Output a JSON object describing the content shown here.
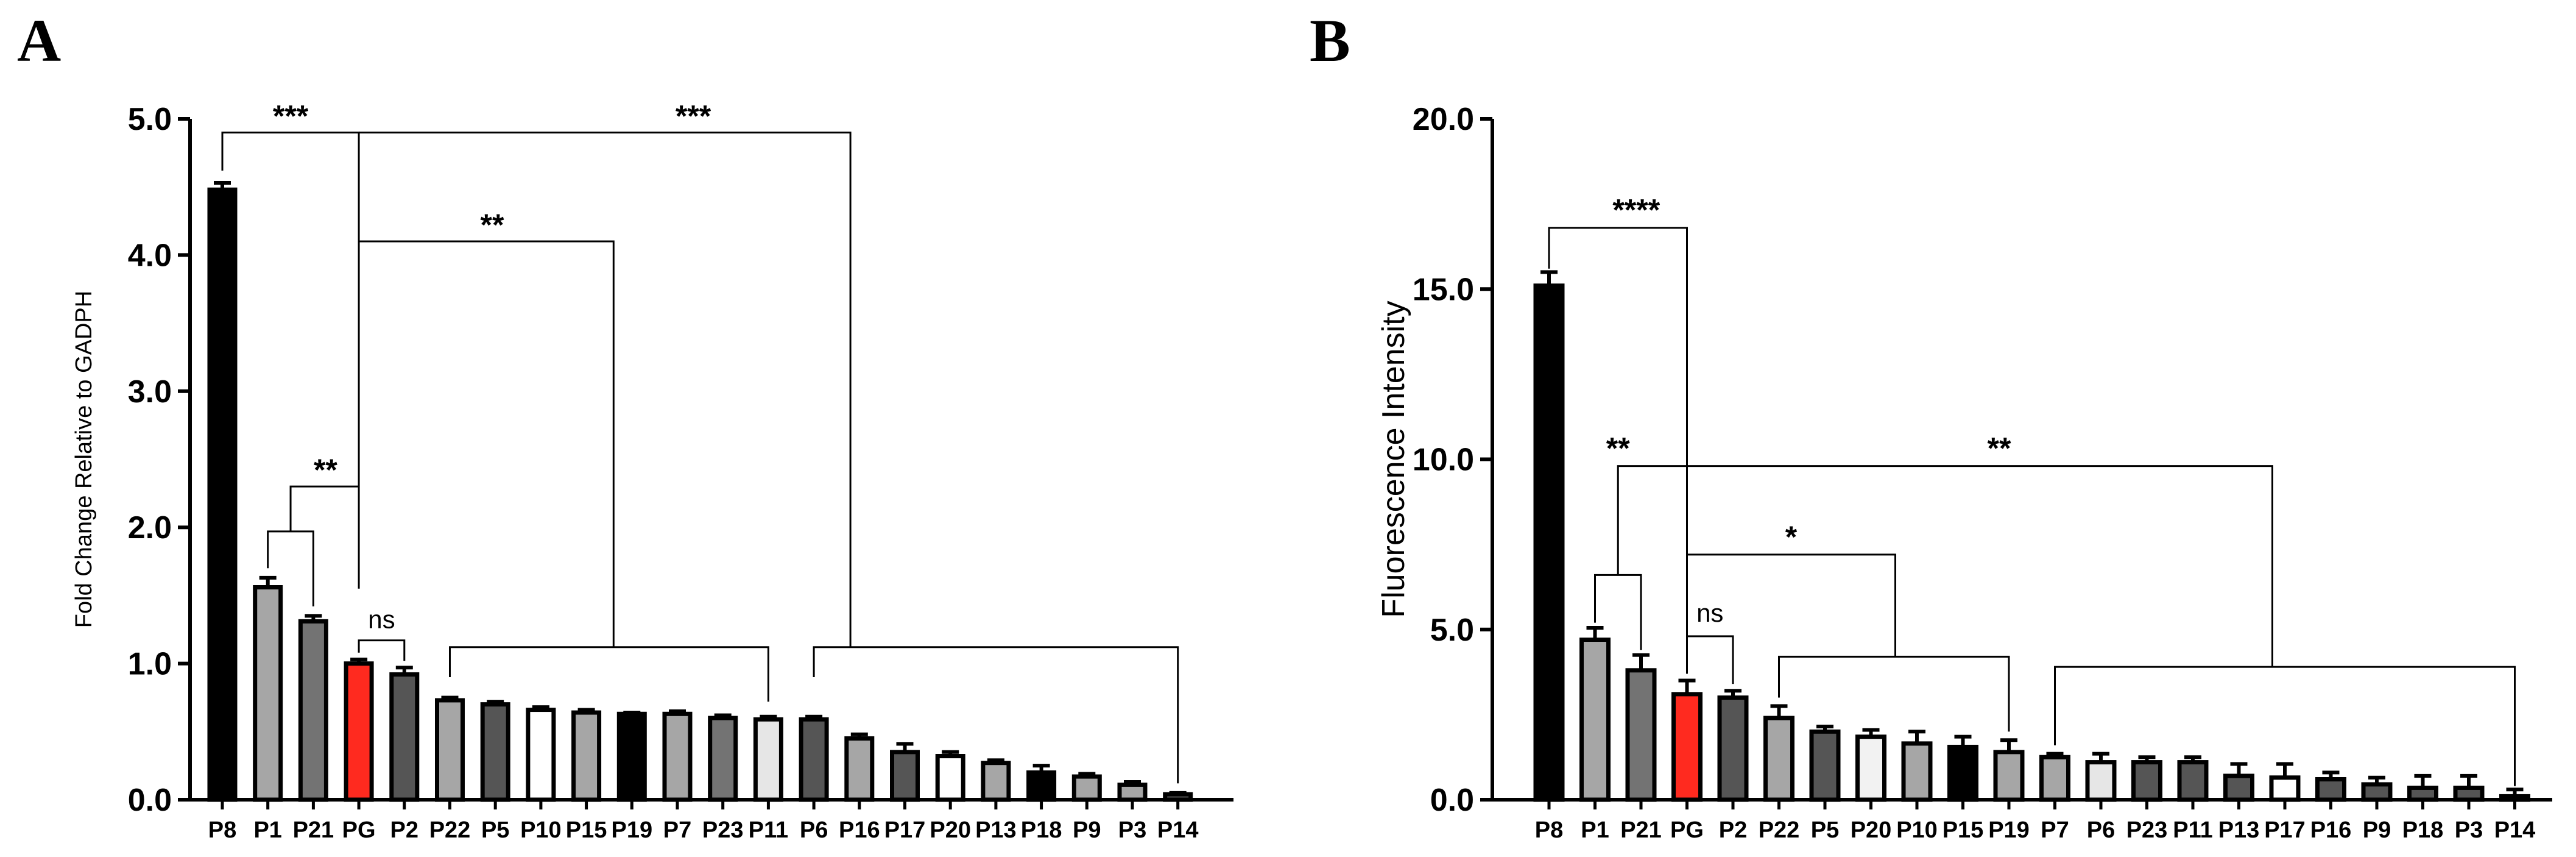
{
  "figure": {
    "panel_a_letter": "A",
    "panel_b_letter": "B"
  },
  "chart_data": [
    {
      "type": "bar",
      "panel": "A",
      "title": "",
      "xlabel": "",
      "ylabel": "Fold Change Relative to GADPH",
      "ylim": [
        0,
        5
      ],
      "yticks": [
        "0.0",
        "1.0",
        "2.0",
        "3.0",
        "4.0",
        "5.0"
      ],
      "categories": [
        "P8",
        "P1",
        "P21",
        "PG",
        "P2",
        "P22",
        "P5",
        "P10",
        "P15",
        "P19",
        "P7",
        "P23",
        "P11",
        "P6",
        "P16",
        "P17",
        "P20",
        "P13",
        "P18",
        "P9",
        "P3",
        "P14"
      ],
      "values": [
        4.48,
        1.56,
        1.31,
        1.0,
        0.92,
        0.73,
        0.7,
        0.66,
        0.64,
        0.63,
        0.63,
        0.6,
        0.59,
        0.59,
        0.45,
        0.35,
        0.32,
        0.27,
        0.2,
        0.17,
        0.11,
        0.04
      ],
      "errors": [
        0.05,
        0.07,
        0.04,
        0.03,
        0.05,
        0.02,
        0.02,
        0.02,
        0.02,
        0.01,
        0.02,
        0.02,
        0.02,
        0.02,
        0.03,
        0.06,
        0.03,
        0.02,
        0.05,
        0.02,
        0.02,
        0.01
      ],
      "colors": [
        "#000000",
        "#a6a6a6",
        "#737373",
        "#ff2a1f",
        "#555555",
        "#a6a6a6",
        "#555555",
        "#ffffff",
        "#a6a6a6",
        "#000000",
        "#a6a6a6",
        "#737373",
        "#e6e6e6",
        "#555555",
        "#a6a6a6",
        "#555555",
        "#ffffff",
        "#a6a6a6",
        "#000000",
        "#a6a6a6",
        "#a6a6a6",
        "#555555"
      ],
      "comparisons": [
        {
          "label": "***",
          "from": 0,
          "to": 3,
          "to_span": null,
          "height": 4.9
        },
        {
          "label": "***",
          "from": 3,
          "to": 13,
          "to_span": [
            13,
            21
          ],
          "height": 4.9
        },
        {
          "label": "**",
          "from": 3,
          "to": 9,
          "to_span": [
            5,
            12
          ],
          "height": 4.1
        },
        {
          "label": "**",
          "from": 1.5,
          "to": 3,
          "to_span": null,
          "height": 2.3
        },
        {
          "label": "",
          "from": 1,
          "to": 2,
          "to_span": null,
          "height": 1.97
        },
        {
          "label": "ns",
          "from": 3,
          "to": 4,
          "to_span": null,
          "height": 1.17
        }
      ]
    },
    {
      "type": "bar",
      "panel": "B",
      "title": "",
      "xlabel": "",
      "ylabel": "Fluorescence Intensity",
      "ylim": [
        0,
        20
      ],
      "yticks": [
        "0.0",
        "5.0",
        "10.0",
        "15.0",
        "20.0"
      ],
      "categories": [
        "P8",
        "P1",
        "P21",
        "PG",
        "P2",
        "P22",
        "P5",
        "P20",
        "P10",
        "P15",
        "P19",
        "P7",
        "P6",
        "P23",
        "P11",
        "P13",
        "P17",
        "P16",
        "P9",
        "P18",
        "P3",
        "P14"
      ],
      "values": [
        15.1,
        4.7,
        3.8,
        3.1,
        3.0,
        2.4,
        2.0,
        1.85,
        1.65,
        1.55,
        1.4,
        1.25,
        1.1,
        1.1,
        1.1,
        0.7,
        0.65,
        0.6,
        0.45,
        0.35,
        0.35,
        0.1
      ],
      "errors": [
        0.4,
        0.35,
        0.45,
        0.4,
        0.2,
        0.35,
        0.15,
        0.2,
        0.35,
        0.3,
        0.35,
        0.1,
        0.25,
        0.15,
        0.15,
        0.35,
        0.4,
        0.2,
        0.2,
        0.35,
        0.35,
        0.2
      ],
      "colors": [
        "#000000",
        "#a6a6a6",
        "#737373",
        "#ff2a1f",
        "#555555",
        "#a6a6a6",
        "#555555",
        "#f2f2f2",
        "#a6a6a6",
        "#000000",
        "#a6a6a6",
        "#a6a6a6",
        "#e6e6e6",
        "#555555",
        "#555555",
        "#555555",
        "#ffffff",
        "#555555",
        "#555555",
        "#555555",
        "#555555",
        "#555555"
      ],
      "comparisons": [
        {
          "label": "****",
          "from": 0,
          "to": 3,
          "to_span": null,
          "height": 16.8
        },
        {
          "label": "**",
          "from": 1.5,
          "to": 12,
          "to_span": [
            11,
            21
          ],
          "height": 9.8
        },
        {
          "label": "**",
          "from": 1.5,
          "to": 12,
          "to_span": null,
          "height": 9.8
        },
        {
          "label": "*",
          "from": 3,
          "to": 8,
          "to_span": [
            5,
            10
          ],
          "height": 7.2
        },
        {
          "label": "",
          "from": 1,
          "to": 2,
          "to_span": null,
          "height": 6.6
        },
        {
          "label": "ns",
          "from": 3,
          "to": 4,
          "to_span": null,
          "height": 4.8
        }
      ]
    }
  ]
}
